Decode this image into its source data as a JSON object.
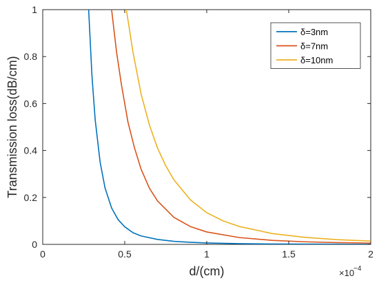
{
  "chart_data": {
    "type": "line",
    "title": "",
    "xlabel": "d/(cm)",
    "ylabel": "Transmission loss(dB/cm)",
    "x_multiplier_label": "×10",
    "x_multiplier_exponent": "−4",
    "xlim": [
      0,
      2
    ],
    "ylim": [
      0,
      1
    ],
    "x_ticks": [
      "0",
      "0.5",
      "1",
      "1.5",
      "2"
    ],
    "y_ticks": [
      "0",
      "0.2",
      "0.4",
      "0.6",
      "0.8",
      "1"
    ],
    "grid": false,
    "legend_position": "top-right",
    "series": [
      {
        "name": "δ=3nm",
        "color": "#0072BD",
        "x": [
          0.28,
          0.3,
          0.32,
          0.35,
          0.38,
          0.42,
          0.46,
          0.5,
          0.55,
          0.6,
          0.7,
          0.8,
          0.9,
          1.0,
          1.2,
          1.4,
          1.6,
          1.8,
          2.0
        ],
        "y": [
          1.0,
          0.72,
          0.53,
          0.35,
          0.24,
          0.155,
          0.105,
          0.075,
          0.05,
          0.036,
          0.021,
          0.013,
          0.009,
          0.006,
          0.003,
          0.0018,
          0.0012,
          0.0008,
          0.0005
        ]
      },
      {
        "name": "δ=7nm",
        "color": "#D95319",
        "x": [
          0.42,
          0.45,
          0.48,
          0.52,
          0.56,
          0.6,
          0.65,
          0.7,
          0.8,
          0.9,
          1.0,
          1.2,
          1.4,
          1.6,
          1.8,
          2.0
        ],
        "y": [
          1.0,
          0.82,
          0.68,
          0.52,
          0.41,
          0.32,
          0.24,
          0.185,
          0.115,
          0.076,
          0.053,
          0.029,
          0.017,
          0.011,
          0.0075,
          0.0055
        ]
      },
      {
        "name": "δ=10nm",
        "color": "#EDB120",
        "x": [
          0.51,
          0.55,
          0.6,
          0.65,
          0.7,
          0.75,
          0.8,
          0.9,
          1.0,
          1.1,
          1.2,
          1.4,
          1.6,
          1.8,
          2.0
        ],
        "y": [
          1.0,
          0.82,
          0.64,
          0.51,
          0.41,
          0.335,
          0.275,
          0.19,
          0.135,
          0.1,
          0.076,
          0.046,
          0.03,
          0.02,
          0.014
        ]
      }
    ]
  }
}
